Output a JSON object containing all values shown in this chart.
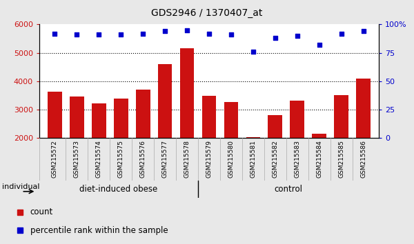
{
  "title": "GDS2946 / 1370407_at",
  "samples": [
    "GSM215572",
    "GSM215573",
    "GSM215574",
    "GSM215575",
    "GSM215576",
    "GSM215577",
    "GSM215578",
    "GSM215579",
    "GSM215580",
    "GSM215581",
    "GSM215582",
    "GSM215583",
    "GSM215584",
    "GSM215585",
    "GSM215586"
  ],
  "counts": [
    3620,
    3450,
    3220,
    3380,
    3700,
    4600,
    5150,
    3490,
    3260,
    2030,
    2800,
    3310,
    2150,
    3500,
    4080
  ],
  "percentile_ranks": [
    92,
    91,
    91,
    91,
    92,
    94,
    95,
    92,
    91,
    76,
    88,
    90,
    82,
    92,
    94
  ],
  "bar_color": "#cc1111",
  "dot_color": "#0000cc",
  "ylim_left": [
    2000,
    6000
  ],
  "ylim_right": [
    0,
    100
  ],
  "yticks_left": [
    2000,
    3000,
    4000,
    5000,
    6000
  ],
  "yticks_right": [
    0,
    25,
    50,
    75,
    100
  ],
  "grid_lines": [
    3000,
    4000,
    5000
  ],
  "background_color": "#e8e8e8",
  "plot_bg": "#ffffff",
  "tick_bg": "#d8d8d8",
  "group_color": "#66ee44",
  "group_divider": 6,
  "group_labels": [
    "diet-induced obese",
    "control"
  ],
  "legend_items": [
    [
      "count",
      "#cc1111"
    ],
    [
      "percentile rank within the sample",
      "#0000cc"
    ]
  ]
}
